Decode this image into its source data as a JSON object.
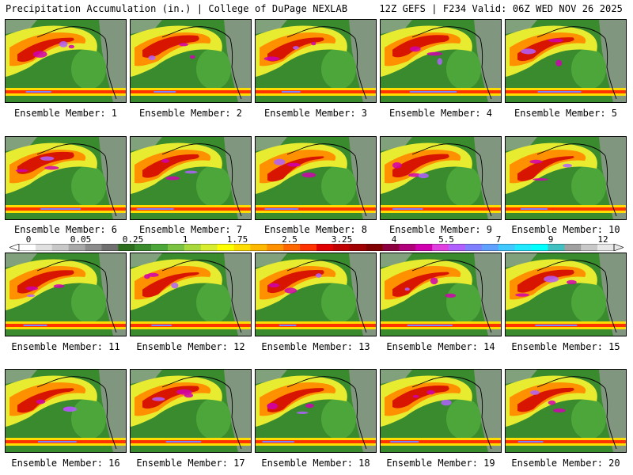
{
  "header": {
    "left": "Precipitation Accumulation (in.) | College of DuPage NEXLAB",
    "right": "12Z GEFS | F234 Valid: 06Z WED NOV 26 2025"
  },
  "panels": [
    {
      "label": "Ensemble Member: 1"
    },
    {
      "label": "Ensemble Member: 2"
    },
    {
      "label": "Ensemble Member: 3"
    },
    {
      "label": "Ensemble Member: 4"
    },
    {
      "label": "Ensemble Member: 5"
    },
    {
      "label": "Ensemble Member: 6"
    },
    {
      "label": "Ensemble Member: 7"
    },
    {
      "label": "Ensemble Member: 8"
    },
    {
      "label": "Ensemble Member: 9"
    },
    {
      "label": "Ensemble Member: 10"
    },
    {
      "label": "Ensemble Member: 11"
    },
    {
      "label": "Ensemble Member: 12"
    },
    {
      "label": "Ensemble Member: 13"
    },
    {
      "label": "Ensemble Member: 14"
    },
    {
      "label": "Ensemble Member: 15"
    },
    {
      "label": "Ensemble Member: 16"
    },
    {
      "label": "Ensemble Member: 17"
    },
    {
      "label": "Ensemble Member: 18"
    },
    {
      "label": "Ensemble Member: 19"
    },
    {
      "label": "Ensemble Member: 20"
    }
  ],
  "legend": {
    "ticks": [
      "0",
      "0.05",
      "0.25",
      "1",
      "1.75",
      "2.5",
      "3.25",
      "4",
      "5.5",
      "7",
      "9",
      "12"
    ],
    "colors": [
      "#ffffff",
      "#e0e0e0",
      "#c8c8c8",
      "#a8a8a8",
      "#8c8c8c",
      "#707070",
      "#2d6e1e",
      "#3a8a2e",
      "#4da63a",
      "#7cc242",
      "#a8d83c",
      "#d8ec30",
      "#ffff00",
      "#ffdd00",
      "#ffb800",
      "#ff9000",
      "#ff6600",
      "#ff3300",
      "#e00000",
      "#c00000",
      "#a00000",
      "#800000",
      "#8c0040",
      "#b0007a",
      "#d000b0",
      "#e040e0",
      "#b060ff",
      "#8080ff",
      "#60a0ff",
      "#40c8ff",
      "#20e8ff",
      "#00ffff",
      "#40c0c0",
      "#a0a0a0",
      "#c8c8c8",
      "#e8e8e8"
    ]
  }
}
